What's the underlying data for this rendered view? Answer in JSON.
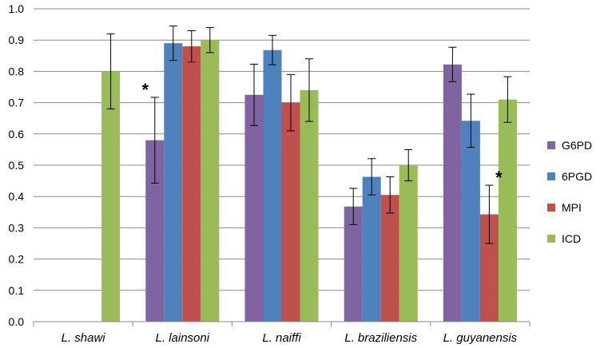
{
  "chart_data": {
    "type": "bar",
    "title": "",
    "xlabel": "",
    "ylabel": "",
    "ylim": [
      0,
      1.0
    ],
    "yticks": [
      "0.0",
      "0.1",
      "0.2",
      "0.3",
      "0.4",
      "0.5",
      "0.6",
      "0.7",
      "0.8",
      "0.9",
      "1.0"
    ],
    "grid": true,
    "legend_position": "right",
    "categories": [
      "L. shawi",
      "L. lainsoni",
      "L. naiffi",
      "L. braziliensis",
      "L. guyanensis"
    ],
    "series": [
      {
        "name": "G6PD",
        "color": "#8064A2",
        "values": [
          null,
          0.58,
          0.725,
          0.368,
          0.822
        ],
        "errors": [
          null,
          0.137,
          0.098,
          0.058,
          0.055
        ]
      },
      {
        "name": "6PGD",
        "color": "#4F81BD",
        "values": [
          null,
          0.89,
          0.868,
          0.463,
          0.642
        ],
        "errors": [
          null,
          0.055,
          0.047,
          0.058,
          0.085
        ]
      },
      {
        "name": "MPI",
        "color": "#C0504D",
        "values": [
          null,
          0.88,
          0.7,
          0.405,
          0.343
        ],
        "errors": [
          null,
          0.05,
          0.09,
          0.058,
          0.093
        ]
      },
      {
        "name": "ICD",
        "color": "#9BBB59",
        "values": [
          0.8,
          0.9,
          0.74,
          0.5,
          0.71
        ],
        "errors": [
          0.12,
          0.04,
          0.1,
          0.05,
          0.073
        ]
      }
    ],
    "annotations": [
      {
        "text": "*",
        "category": "L. lainsoni",
        "series": "G6PD"
      },
      {
        "text": "*",
        "category": "L. guyanensis",
        "series": "MPI"
      }
    ]
  }
}
